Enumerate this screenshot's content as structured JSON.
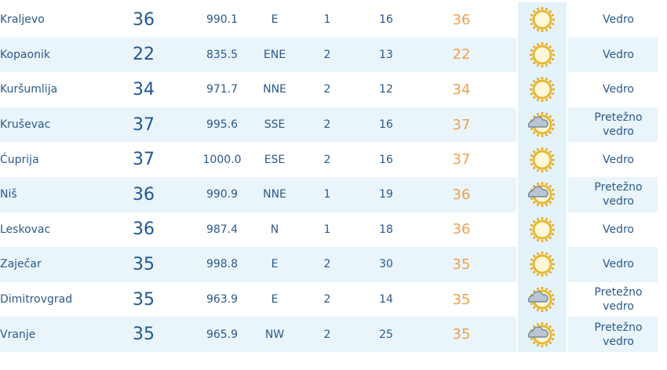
{
  "table": {
    "rows": [
      [
        "Kraljevo",
        36,
        "990.1",
        "E",
        1,
        16,
        36,
        "Vedro"
      ],
      [
        "Kopaonik",
        22,
        "835.5",
        "ENE",
        2,
        13,
        22,
        "Vedro"
      ],
      [
        "Kuršumlija",
        34,
        "971.7",
        "NNE",
        2,
        12,
        34,
        "Vedro"
      ],
      [
        "Kruševac",
        37,
        "995.6",
        "SSE",
        2,
        16,
        37,
        "Pretežno vedro"
      ],
      [
        "Ćuprija",
        37,
        "1000.0",
        "ESE",
        2,
        16,
        37,
        "Vedro"
      ],
      [
        "Niš",
        36,
        "990.9",
        "NNE",
        1,
        19,
        36,
        "Pretežno vedro"
      ],
      [
        "Leskovac",
        36,
        "987.4",
        "N",
        1,
        18,
        36,
        "Vedro"
      ],
      [
        "Zaječar",
        35,
        "998.8",
        "E",
        2,
        30,
        35,
        "Vedro"
      ],
      [
        "Dimitrovgrad",
        35,
        "963.9",
        "E",
        2,
        14,
        35,
        "Pretežno vedro"
      ],
      [
        "Vranje",
        35,
        "965.9",
        "NW",
        2,
        25,
        35,
        "Pretežno vedro"
      ]
    ]
  }
}
